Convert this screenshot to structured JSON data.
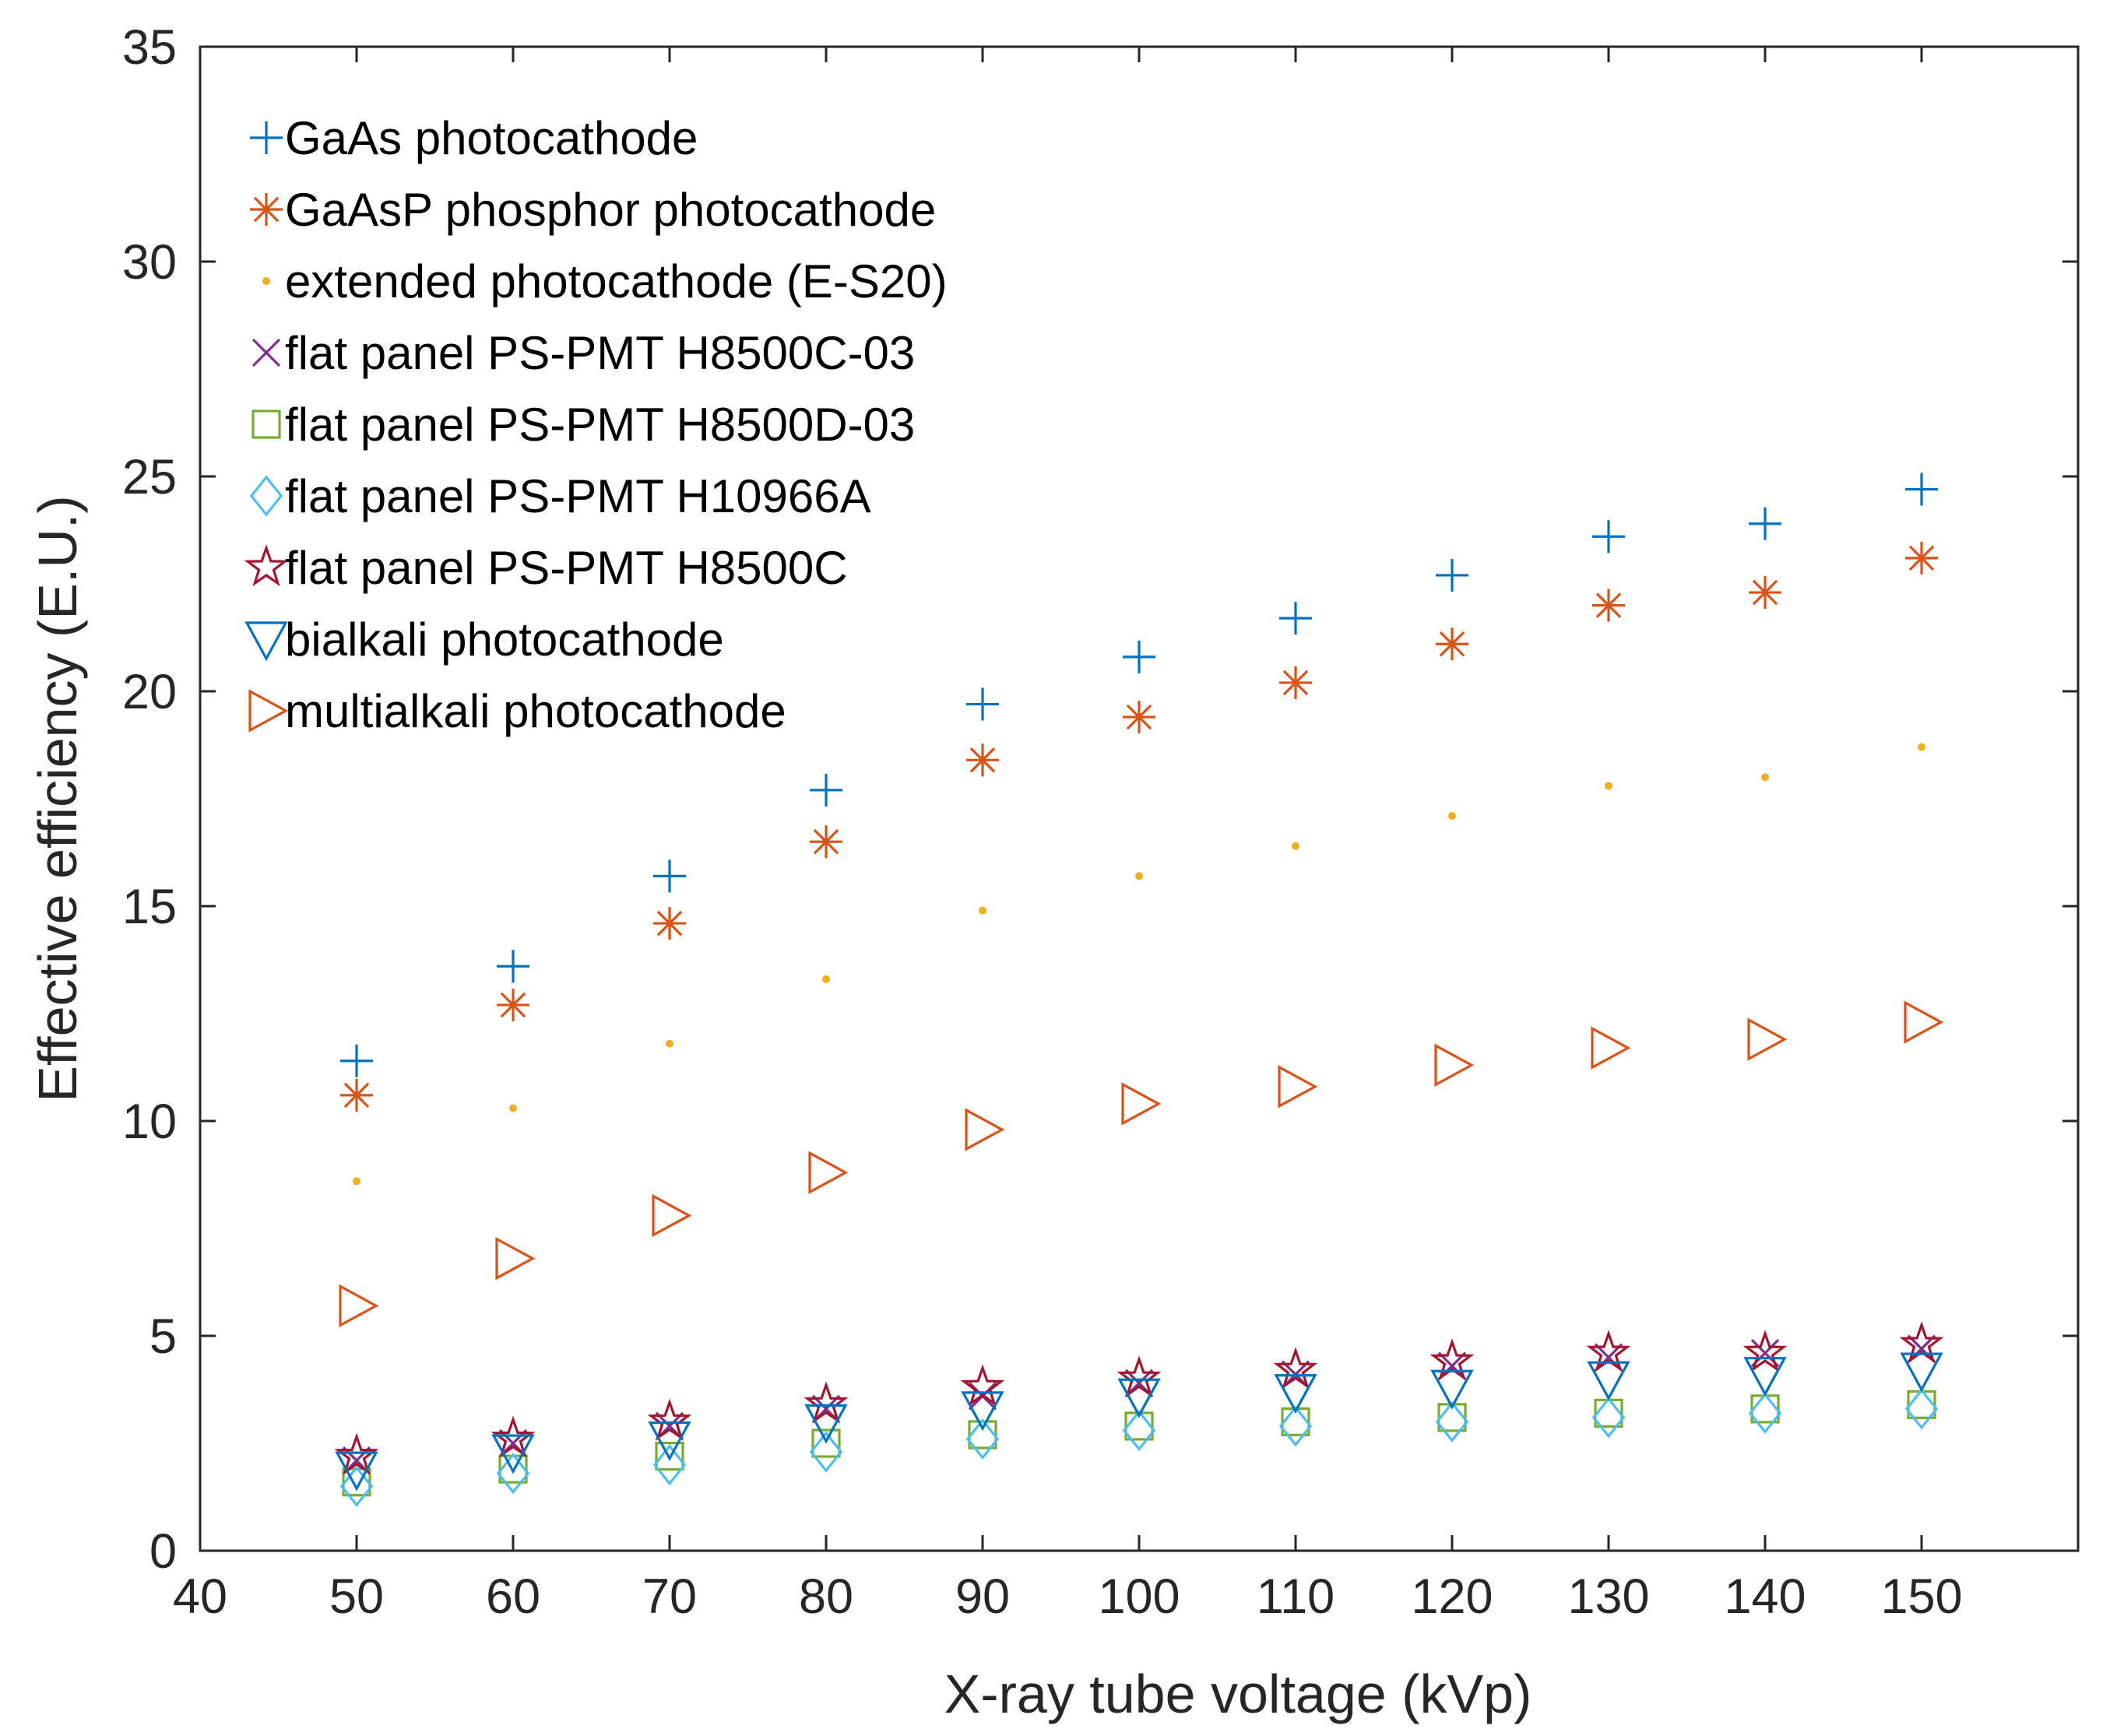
{
  "chart_data": {
    "type": "scatter",
    "title": "",
    "xlabel": "X-ray tube voltage (kVp)",
    "ylabel": "Effective efficiency (E.U.)",
    "xlim": [
      40,
      160
    ],
    "ylim": [
      0,
      35
    ],
    "xticks": [
      40,
      50,
      60,
      70,
      80,
      90,
      100,
      110,
      120,
      130,
      140,
      150
    ],
    "yticks": [
      0,
      5,
      10,
      15,
      20,
      25,
      30,
      35
    ],
    "grid": false,
    "legend_position": "top-left",
    "x": [
      50,
      60,
      70,
      80,
      90,
      100,
      110,
      120,
      130,
      140,
      150
    ],
    "series": [
      {
        "name": "GaAs photocathode",
        "marker": "plus",
        "color": "#0072BD",
        "values": [
          11.4,
          13.6,
          15.7,
          17.7,
          19.7,
          20.8,
          21.7,
          22.7,
          23.6,
          23.9,
          24.7
        ]
      },
      {
        "name": "GaAsP phosphor photocathode",
        "marker": "asterisk",
        "color": "#D95319",
        "values": [
          10.6,
          12.7,
          14.6,
          16.5,
          18.4,
          19.4,
          20.2,
          21.1,
          22.0,
          22.3,
          23.1
        ]
      },
      {
        "name": "extended photocathode (E-S20)",
        "marker": "dot",
        "color": "#EDB120",
        "values": [
          8.6,
          10.3,
          11.8,
          13.3,
          14.9,
          15.7,
          16.4,
          17.1,
          17.8,
          18.0,
          18.7
        ]
      },
      {
        "name": "flat panel PS-PMT H8500C-03",
        "marker": "x",
        "color": "#7E2F8E",
        "values": [
          2.1,
          2.5,
          2.9,
          3.3,
          3.6,
          3.9,
          4.1,
          4.3,
          4.5,
          4.6,
          4.7
        ]
      },
      {
        "name": "flat panel PS-PMT H8500D-03",
        "marker": "square",
        "color": "#77AC30",
        "values": [
          1.6,
          1.9,
          2.2,
          2.5,
          2.7,
          2.9,
          3.0,
          3.1,
          3.2,
          3.3,
          3.4
        ]
      },
      {
        "name": "flat panel PS-PMT H10966A",
        "marker": "diamond",
        "color": "#4DBEEE",
        "values": [
          1.5,
          1.8,
          2.0,
          2.3,
          2.6,
          2.8,
          2.9,
          3.0,
          3.1,
          3.2,
          3.3
        ]
      },
      {
        "name": "flat panel PS-PMT H8500C",
        "marker": "pentagram",
        "color": "#A2142F",
        "values": [
          2.2,
          2.6,
          3.0,
          3.4,
          3.8,
          4.0,
          4.2,
          4.4,
          4.6,
          4.6,
          4.8
        ]
      },
      {
        "name": "bialkali photocathode",
        "marker": "triangle-down",
        "color": "#0072BD",
        "values": [
          1.9,
          2.3,
          2.6,
          3.0,
          3.3,
          3.6,
          3.7,
          3.8,
          4.0,
          4.1,
          4.2
        ]
      },
      {
        "name": "multialkali photocathode",
        "marker": "triangle-right",
        "color": "#D95319",
        "values": [
          5.7,
          6.8,
          7.8,
          8.8,
          9.8,
          10.4,
          10.8,
          11.3,
          11.7,
          11.9,
          12.3
        ]
      }
    ]
  }
}
